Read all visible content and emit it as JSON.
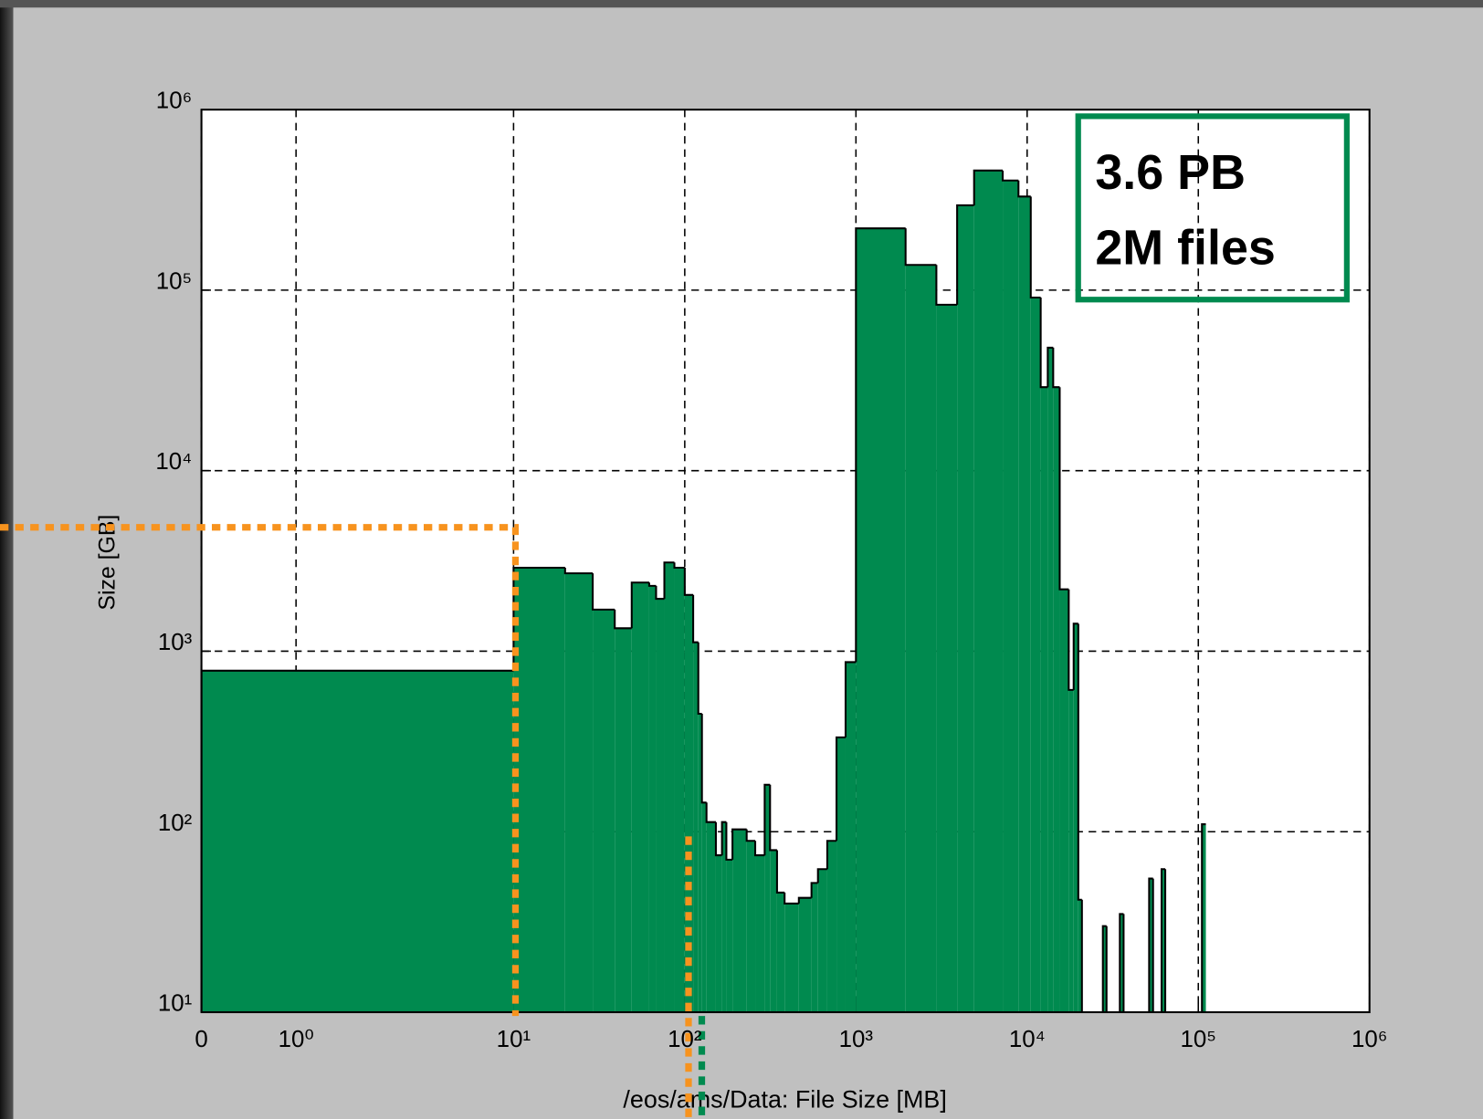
{
  "chart_data": {
    "type": "histogram",
    "xlabel": "/eos/ams/Data:  File Size [MB]",
    "ylabel": "Size [GB]",
    "annotations": [
      "3.6 PB",
      "2M files"
    ],
    "color": "#008a4f",
    "xscale": "log",
    "yscale": "log",
    "grid": true,
    "bins": [
      0,
      10,
      20,
      29,
      39,
      49,
      62,
      68,
      76,
      87,
      100,
      112,
      120,
      126,
      134,
      152,
      165,
      175,
      190,
      230,
      258,
      293,
      315,
      346,
      383,
      464,
      550,
      600,
      680,
      770,
      870,
      1000,
      1950,
      2950,
      3900,
      4900,
      7200,
      8900,
      10500,
      12000,
      13200,
      14200,
      15500,
      17500,
      18700,
      19900,
      20900,
      27700,
      29100,
      34800,
      36600,
      51600,
      54400,
      61000,
      64100,
      105000,
      110700
    ],
    "counts": [
      780,
      2900,
      2700,
      1700,
      1340,
      2400,
      2300,
      1950,
      3100,
      2900,
      2050,
      1120,
      450,
      145,
      113,
      74,
      113,
      70,
      103,
      89,
      74,
      182,
      79,
      46,
      40,
      43,
      52,
      62,
      89,
      333,
      870,
      220000,
      138000,
      83000,
      295000,
      460000,
      405000,
      330000,
      91000,
      29000,
      48000,
      29000,
      2200,
      610,
      1420,
      42,
      0,
      30,
      0,
      35,
      0,
      55,
      0,
      62,
      0,
      110
    ],
    "xlim": [
      0,
      1000000
    ],
    "ylim": [
      10,
      1000000
    ],
    "xticks": [
      0,
      {
        "value": 1,
        "label": "10⁰"
      },
      {
        "value": 10,
        "label": "10¹"
      },
      {
        "value": 100,
        "label": "10²"
      },
      {
        "value": 1000,
        "label": "10³"
      },
      {
        "value": 10000,
        "label": "10⁴"
      },
      {
        "value": 100000,
        "label": "10⁵"
      },
      {
        "value": 1000000,
        "label": "10⁶"
      }
    ],
    "yticks": [
      {
        "value": 10,
        "label": "10¹"
      },
      {
        "value": 100,
        "label": "10²"
      },
      {
        "value": 1000,
        "label": "10³"
      },
      {
        "value": 10000,
        "label": "10⁴"
      },
      {
        "value": 100000,
        "label": "10⁵"
      },
      {
        "value": 1000000,
        "label": "10⁶"
      }
    ]
  }
}
